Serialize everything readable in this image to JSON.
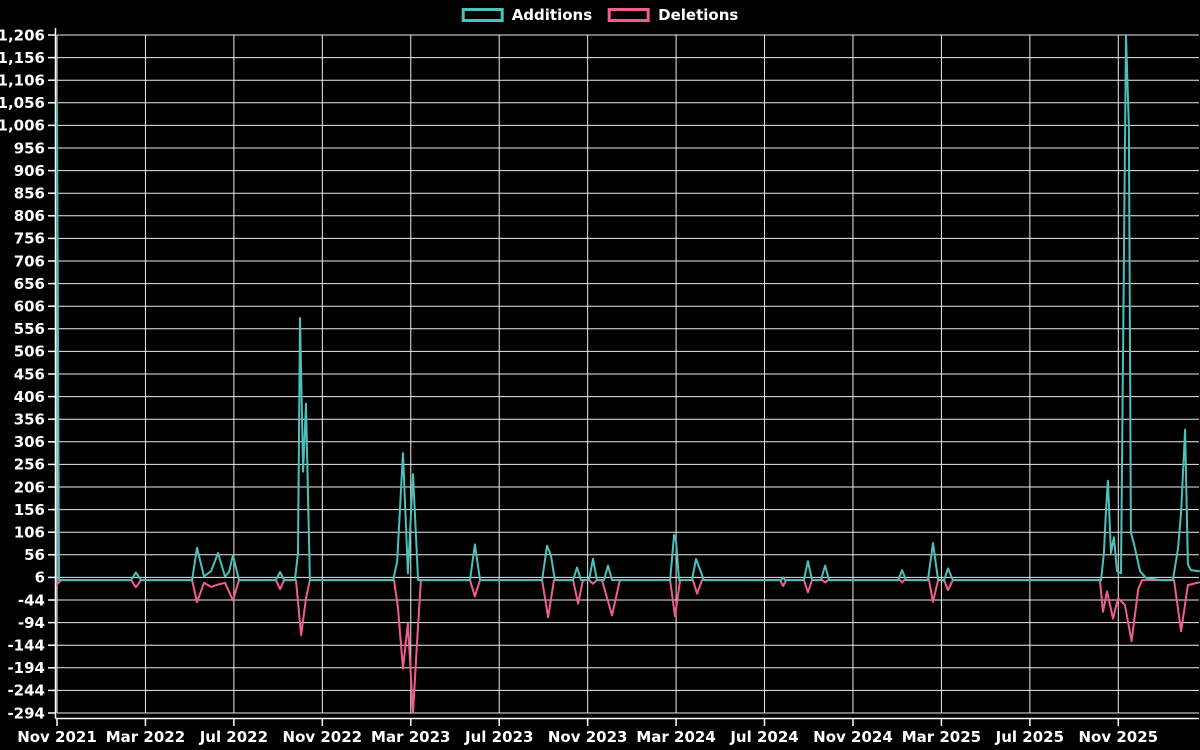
{
  "legend": {
    "items": [
      {
        "label": "Additions",
        "color": "#4cc0bb"
      },
      {
        "label": "Deletions",
        "color": "#f25d8e"
      }
    ]
  },
  "chart_data": {
    "type": "line",
    "title": "",
    "xlabel": "",
    "ylabel": "",
    "x_axis": {
      "unit": "months since Nov 2021",
      "range_months": [
        0,
        51.65
      ],
      "ticks": [
        {
          "m": 0,
          "label": "Nov 2021"
        },
        {
          "m": 4,
          "label": "Mar 2022"
        },
        {
          "m": 8,
          "label": "Jul 2022"
        },
        {
          "m": 12,
          "label": "Nov 2022"
        },
        {
          "m": 16,
          "label": "Mar 2023"
        },
        {
          "m": 20,
          "label": "Jul 2023"
        },
        {
          "m": 24,
          "label": "Nov 2023"
        },
        {
          "m": 28,
          "label": "Mar 2024"
        },
        {
          "m": 32,
          "label": "Jul 2024"
        },
        {
          "m": 36,
          "label": "Nov 2024"
        },
        {
          "m": 40,
          "label": "Mar 2025"
        },
        {
          "m": 44,
          "label": "Jul 2025"
        },
        {
          "m": 48,
          "label": "Nov 2025"
        }
      ]
    },
    "y_axis": {
      "min": -294,
      "max": 1206,
      "step": 50,
      "ticks": [
        {
          "v": 1206,
          "label": "1,206"
        },
        {
          "v": 1156,
          "label": "1,156"
        },
        {
          "v": 1106,
          "label": "1,106"
        },
        {
          "v": 1056,
          "label": "1,056"
        },
        {
          "v": 1006,
          "label": "1,006"
        },
        {
          "v": 956,
          "label": "956"
        },
        {
          "v": 906,
          "label": "906"
        },
        {
          "v": 856,
          "label": "856"
        },
        {
          "v": 806,
          "label": "806"
        },
        {
          "v": 756,
          "label": "756"
        },
        {
          "v": 706,
          "label": "706"
        },
        {
          "v": 656,
          "label": "656"
        },
        {
          "v": 606,
          "label": "606"
        },
        {
          "v": 556,
          "label": "556"
        },
        {
          "v": 506,
          "label": "506"
        },
        {
          "v": 456,
          "label": "456"
        },
        {
          "v": 406,
          "label": "406"
        },
        {
          "v": 356,
          "label": "356"
        },
        {
          "v": 306,
          "label": "306"
        },
        {
          "v": 256,
          "label": "256"
        },
        {
          "v": 206,
          "label": "206"
        },
        {
          "v": 156,
          "label": "156"
        },
        {
          "v": 106,
          "label": "106"
        },
        {
          "v": 56,
          "label": "56"
        },
        {
          "v": 6,
          "label": "6"
        },
        {
          "v": -44,
          "label": "-44"
        },
        {
          "v": -94,
          "label": "-94"
        },
        {
          "v": -144,
          "label": "-144"
        },
        {
          "v": -194,
          "label": "-194"
        },
        {
          "v": -244,
          "label": "-244"
        },
        {
          "v": -294,
          "label": "-294"
        }
      ]
    },
    "series": [
      {
        "name": "Additions",
        "color": "#4cc0bb",
        "points": [
          [
            0,
            1056
          ],
          [
            0.09,
            0
          ],
          [
            3.35,
            0
          ],
          [
            3.57,
            17
          ],
          [
            3.8,
            0
          ],
          [
            6.11,
            0
          ],
          [
            6.33,
            72
          ],
          [
            6.65,
            8
          ],
          [
            6.97,
            20
          ],
          [
            7.28,
            60
          ],
          [
            7.6,
            8
          ],
          [
            7.78,
            18
          ],
          [
            7.96,
            55
          ],
          [
            8.23,
            0
          ],
          [
            9.9,
            0
          ],
          [
            10.09,
            18
          ],
          [
            10.27,
            0
          ],
          [
            10.76,
            0
          ],
          [
            10.9,
            60
          ],
          [
            10.99,
            580
          ],
          [
            11.13,
            240
          ],
          [
            11.26,
            390
          ],
          [
            11.44,
            0
          ],
          [
            15.2,
            0
          ],
          [
            15.38,
            40
          ],
          [
            15.65,
            281
          ],
          [
            15.87,
            15
          ],
          [
            16.1,
            234
          ],
          [
            16.33,
            0
          ],
          [
            18.68,
            0
          ],
          [
            18.9,
            79
          ],
          [
            19.13,
            0
          ],
          [
            21.94,
            0
          ],
          [
            22.16,
            76
          ],
          [
            22.34,
            55
          ],
          [
            22.52,
            0
          ],
          [
            23.34,
            0
          ],
          [
            23.52,
            28
          ],
          [
            23.7,
            0
          ],
          [
            24.06,
            0
          ],
          [
            24.24,
            47
          ],
          [
            24.42,
            0
          ],
          [
            24.74,
            0
          ],
          [
            24.92,
            32
          ],
          [
            25.1,
            0
          ],
          [
            27.73,
            0
          ],
          [
            27.91,
            100
          ],
          [
            28,
            85
          ],
          [
            28.13,
            0
          ],
          [
            28.72,
            0
          ],
          [
            28.9,
            47
          ],
          [
            29.26,
            0
          ],
          [
            32.75,
            0
          ],
          [
            32.84,
            6
          ],
          [
            32.93,
            0
          ],
          [
            33.78,
            0
          ],
          [
            33.96,
            42
          ],
          [
            34.15,
            0
          ],
          [
            34.55,
            0
          ],
          [
            34.74,
            32
          ],
          [
            34.92,
            0
          ],
          [
            38.04,
            0
          ],
          [
            38.22,
            22
          ],
          [
            38.4,
            0
          ],
          [
            39.39,
            0
          ],
          [
            39.62,
            82
          ],
          [
            39.85,
            0
          ],
          [
            40.12,
            0
          ],
          [
            40.3,
            26
          ],
          [
            40.52,
            0
          ],
          [
            47.22,
            0
          ],
          [
            47.35,
            60
          ],
          [
            47.44,
            150
          ],
          [
            47.53,
            220
          ],
          [
            47.67,
            60
          ],
          [
            47.8,
            95
          ],
          [
            47.94,
            20
          ],
          [
            48.12,
            15
          ],
          [
            48.35,
            1206
          ],
          [
            48.48,
            1000
          ],
          [
            48.57,
            105
          ],
          [
            48.71,
            80
          ],
          [
            48.98,
            20
          ],
          [
            49.25,
            5
          ],
          [
            49.88,
            0
          ],
          [
            50.47,
            0
          ],
          [
            50.7,
            70
          ],
          [
            50.84,
            150
          ],
          [
            51.02,
            333
          ],
          [
            51.15,
            35
          ],
          [
            51.29,
            22
          ],
          [
            51.65,
            20
          ]
        ]
      },
      {
        "name": "Deletions",
        "color": "#f25d8e",
        "points": [
          [
            0,
            -10
          ],
          [
            0.18,
            0
          ],
          [
            3.35,
            0
          ],
          [
            3.57,
            -16
          ],
          [
            3.8,
            0
          ],
          [
            6.11,
            0
          ],
          [
            6.33,
            -49
          ],
          [
            6.65,
            -6
          ],
          [
            6.97,
            -15
          ],
          [
            7.28,
            -10
          ],
          [
            7.6,
            -6
          ],
          [
            7.96,
            -45
          ],
          [
            8.23,
            0
          ],
          [
            9.9,
            0
          ],
          [
            10.09,
            -20
          ],
          [
            10.27,
            0
          ],
          [
            10.81,
            0
          ],
          [
            11.04,
            -122
          ],
          [
            11.26,
            -40
          ],
          [
            11.44,
            0
          ],
          [
            15.24,
            0
          ],
          [
            15.42,
            -60
          ],
          [
            15.65,
            -196
          ],
          [
            15.87,
            -96
          ],
          [
            16.1,
            -294
          ],
          [
            16.28,
            -140
          ],
          [
            16.46,
            0
          ],
          [
            18.68,
            0
          ],
          [
            18.9,
            -36
          ],
          [
            19.13,
            0
          ],
          [
            21.94,
            0
          ],
          [
            22.21,
            -82
          ],
          [
            22.48,
            0
          ],
          [
            23.34,
            0
          ],
          [
            23.57,
            -52
          ],
          [
            23.79,
            0
          ],
          [
            24.06,
            0
          ],
          [
            24.24,
            -8
          ],
          [
            24.42,
            0
          ],
          [
            24.65,
            0
          ],
          [
            25.1,
            -78
          ],
          [
            25.46,
            0
          ],
          [
            27.73,
            0
          ],
          [
            27.95,
            -80
          ],
          [
            28.18,
            0
          ],
          [
            28.76,
            0
          ],
          [
            28.95,
            -30
          ],
          [
            29.17,
            0
          ],
          [
            32.7,
            0
          ],
          [
            32.84,
            -13
          ],
          [
            32.98,
            0
          ],
          [
            33.78,
            0
          ],
          [
            33.96,
            -27
          ],
          [
            34.15,
            0
          ],
          [
            34.6,
            0
          ],
          [
            34.74,
            -5
          ],
          [
            34.88,
            0
          ],
          [
            38.13,
            0
          ],
          [
            38.22,
            -5
          ],
          [
            38.31,
            0
          ],
          [
            39.44,
            0
          ],
          [
            39.62,
            -48
          ],
          [
            39.85,
            0
          ],
          [
            40.12,
            0
          ],
          [
            40.3,
            -22
          ],
          [
            40.52,
            0
          ],
          [
            47.17,
            0
          ],
          [
            47.31,
            -70
          ],
          [
            47.49,
            -25
          ],
          [
            47.76,
            -85
          ],
          [
            47.99,
            -40
          ],
          [
            48.3,
            -55
          ],
          [
            48.6,
            -135
          ],
          [
            48.9,
            -20
          ],
          [
            49.07,
            0
          ],
          [
            50.52,
            0
          ],
          [
            50.84,
            -113
          ],
          [
            51.15,
            -11
          ],
          [
            51.65,
            -5
          ]
        ]
      }
    ],
    "layout": {
      "background": "#000000",
      "grid": true,
      "grid_color": "#ececec",
      "axis_color": "#ffffff",
      "text_color": "#ffffff",
      "legend_position": "top-center"
    }
  }
}
